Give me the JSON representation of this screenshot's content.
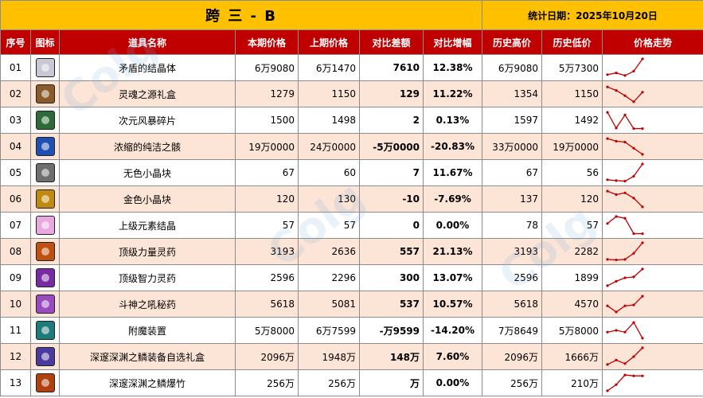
{
  "title": "跨 三 - B",
  "stat_date": "统计日期：2025年10月20日",
  "headers": [
    "序号",
    "图标",
    "道具名称",
    "本期价格",
    "上期价格",
    "对比差额",
    "对比增幅",
    "历史高价",
    "历史低价",
    "价格走势"
  ],
  "watermark": "Colg",
  "colors": {
    "title_bg": "#ffc000",
    "header_bg": "#c00000",
    "row_alt": "#fce4d6",
    "up": "#e00000",
    "down": "#00a040",
    "spark": "#c00000"
  },
  "rows": [
    {
      "no": "01",
      "icon": "crystal-icon",
      "icon_color": "#c9c9d6",
      "name": "矛盾的结晶体",
      "cur": "6万9080",
      "prev": "6万1470",
      "diff": "7610",
      "pct": "12.38%",
      "high": "6万9080",
      "low": "5万7300",
      "dir": "up",
      "trend": [
        0.1,
        0.2,
        0.05,
        0.3,
        1.0
      ]
    },
    {
      "no": "02",
      "icon": "gift-box-icon",
      "icon_color": "#8a5a2a",
      "name": "灵魂之源礼盒",
      "cur": "1279",
      "prev": "1150",
      "diff": "129",
      "pct": "11.22%",
      "high": "1354",
      "low": "1150",
      "dir": "up",
      "trend": [
        0.9,
        0.7,
        0.4,
        0.05,
        0.6
      ]
    },
    {
      "no": "03",
      "icon": "shard-icon",
      "icon_color": "#2f6b3a",
      "name": "次元风暴碎片",
      "cur": "1500",
      "prev": "1498",
      "diff": "2",
      "pct": "0.13%",
      "high": "1597",
      "low": "1492",
      "dir": "up",
      "trend": [
        0.95,
        0.05,
        0.8,
        0.02,
        0.02
      ]
    },
    {
      "no": "04",
      "icon": "orb-icon",
      "icon_color": "#1f4fb0",
      "name": "浓缩的纯洁之骸",
      "cur": "19万0000",
      "prev": "24万0000",
      "diff": "-5万0000",
      "pct": "-20.83%",
      "high": "33万0000",
      "low": "19万0000",
      "dir": "down",
      "trend": [
        0.95,
        0.8,
        0.75,
        0.4,
        0.05
      ]
    },
    {
      "no": "05",
      "icon": "cube-icon",
      "icon_color": "#6e6e6e",
      "name": "无色小晶块",
      "cur": "67",
      "prev": "60",
      "diff": "7",
      "pct": "11.67%",
      "high": "67",
      "low": "56",
      "dir": "up",
      "trend": [
        0.1,
        0.05,
        0.02,
        0.3,
        1.0
      ]
    },
    {
      "no": "06",
      "icon": "gold-cube-icon",
      "icon_color": "#c08a10",
      "name": "金色小晶块",
      "cur": "120",
      "prev": "130",
      "diff": "-10",
      "pct": "-7.69%",
      "high": "137",
      "low": "120",
      "dir": "down",
      "trend": [
        0.95,
        0.75,
        0.85,
        0.55,
        0.05
      ]
    },
    {
      "no": "07",
      "icon": "pink-crystal-icon",
      "icon_color": "#e9a8e0",
      "name": "上级元素结晶",
      "cur": "57",
      "prev": "57",
      "diff": "0",
      "pct": "0.00%",
      "high": "78",
      "low": "57",
      "dir": "zero",
      "trend": [
        0.6,
        1.0,
        0.9,
        0.02,
        0.02
      ]
    },
    {
      "no": "08",
      "icon": "potion-red-icon",
      "icon_color": "#c05010",
      "name": "顶级力量灵药",
      "cur": "3193",
      "prev": "2636",
      "diff": "557",
      "pct": "21.13%",
      "high": "3193",
      "low": "2282",
      "dir": "up",
      "trend": [
        0.05,
        0.02,
        0.05,
        0.4,
        1.0
      ]
    },
    {
      "no": "09",
      "icon": "potion-purple-icon",
      "icon_color": "#7a2aa0",
      "name": "顶级智力灵药",
      "cur": "2596",
      "prev": "2296",
      "diff": "300",
      "pct": "13.07%",
      "high": "2596",
      "low": "1899",
      "dir": "up",
      "trend": [
        0.05,
        0.3,
        0.5,
        0.55,
        1.0
      ]
    },
    {
      "no": "10",
      "icon": "potion-violet-icon",
      "icon_color": "#9a4ac0",
      "name": "斗神之吼秘药",
      "cur": "5618",
      "prev": "5081",
      "diff": "537",
      "pct": "10.57%",
      "high": "5618",
      "low": "4570",
      "dir": "up",
      "trend": [
        0.4,
        0.05,
        0.4,
        0.45,
        0.95
      ]
    },
    {
      "no": "11",
      "icon": "device-icon",
      "icon_color": "#1f7a7a",
      "name": "附魔装置",
      "cur": "5万8000",
      "prev": "6万7599",
      "diff": "-万9599",
      "pct": "-14.20%",
      "high": "7万8649",
      "low": "5万8000",
      "dir": "down",
      "trend": [
        0.4,
        0.5,
        0.4,
        0.95,
        0.05
      ]
    },
    {
      "no": "12",
      "icon": "chest-icon",
      "icon_color": "#4a3aa0",
      "name": "深邃深渊之鳞装备自选礼盒",
      "cur": "2096万",
      "prev": "1948万",
      "diff": "148万",
      "pct": "7.60%",
      "high": "2096万",
      "low": "1666万",
      "dir": "up",
      "trend": [
        0.05,
        0.3,
        0.1,
        0.5,
        1.0
      ]
    },
    {
      "no": "13",
      "icon": "firecracker-icon",
      "icon_color": "#b04010",
      "name": "深邃深渊之鳞爆竹",
      "cur": "256万",
      "prev": "256万",
      "diff": "万",
      "pct": "0.00%",
      "high": "256万",
      "low": "210万",
      "dir": "zero",
      "trend": [
        0.05,
        0.4,
        0.95,
        0.9,
        0.9
      ]
    }
  ]
}
